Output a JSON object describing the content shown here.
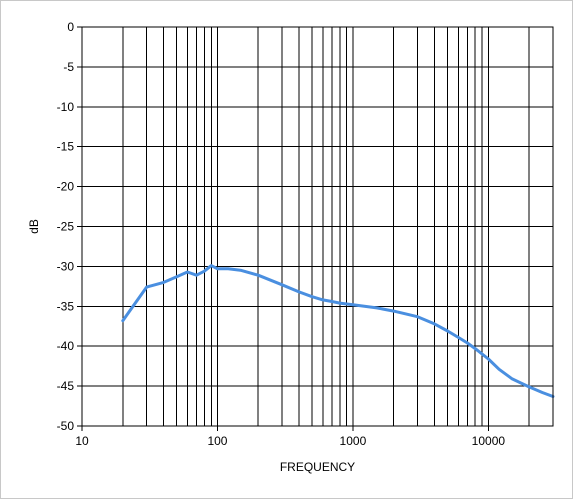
{
  "chart_data": {
    "type": "line",
    "title": "",
    "xlabel": "FREQUENCY",
    "ylabel": "dB",
    "xscale": "log",
    "xlim": [
      10,
      30000
    ],
    "ylim": [
      -50,
      0
    ],
    "grid": true,
    "x_tick_labels": [
      "10",
      "100",
      "1000",
      "10000"
    ],
    "y_tick_labels": [
      "0",
      "-5",
      "-10",
      "-15",
      "-20",
      "-25",
      "-30",
      "-35",
      "-40",
      "-45",
      "-50"
    ],
    "series": [
      {
        "color": "#4a8fe0",
        "x": [
          20,
          30,
          40,
          50,
          60,
          70,
          80,
          90,
          100,
          120,
          150,
          200,
          300,
          400,
          500,
          600,
          700,
          800,
          1000,
          1500,
          2000,
          3000,
          4000,
          5000,
          6000,
          7000,
          8000,
          10000,
          12000,
          15000,
          20000,
          25000,
          30000
        ],
        "y": [
          -36.8,
          -32.6,
          -32.0,
          -31.3,
          -30.7,
          -31.1,
          -30.6,
          -29.9,
          -30.3,
          -30.3,
          -30.5,
          -31.1,
          -32.3,
          -33.2,
          -33.8,
          -34.2,
          -34.4,
          -34.6,
          -34.8,
          -35.2,
          -35.6,
          -36.3,
          -37.2,
          -38.1,
          -38.9,
          -39.6,
          -40.3,
          -41.6,
          -42.9,
          -44.1,
          -45.1,
          -45.8,
          -46.3
        ]
      }
    ]
  }
}
